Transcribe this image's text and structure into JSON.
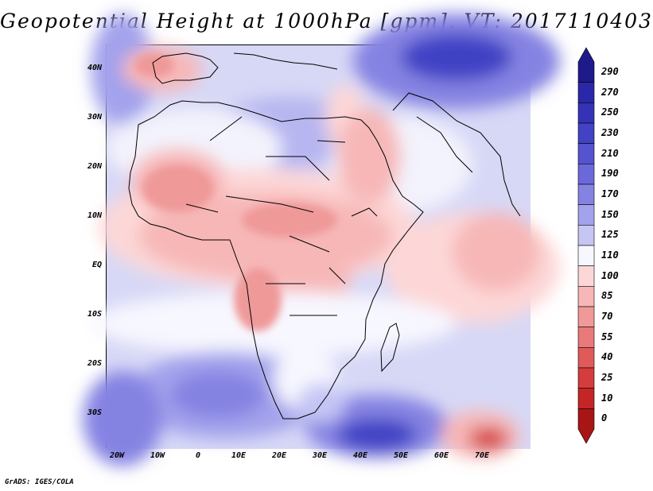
{
  "title": "Geopotential Height at 1000hPa [gpm], VT: 2017110403",
  "credit": "GrADS: IGES/COLA",
  "y_ticks": [
    "40N",
    "30N",
    "20N",
    "10N",
    "EQ",
    "10S",
    "20S",
    "30S"
  ],
  "x_ticks": [
    "20W",
    "10W",
    "0",
    "10E",
    "20E",
    "30E",
    "40E",
    "50E",
    "60E",
    "70E"
  ],
  "colorbar": {
    "labels": [
      "290",
      "270",
      "250",
      "230",
      "210",
      "190",
      "170",
      "150",
      "125",
      "110",
      "100",
      "85",
      "70",
      "55",
      "40",
      "25",
      "10",
      "0"
    ],
    "colors": [
      "#1e1a8a",
      "#2a28a8",
      "#3433b8",
      "#4142c4",
      "#5553cf",
      "#6b69d9",
      "#8583e2",
      "#a3a2ec",
      "#c6c6f5",
      "#f7f7ff",
      "#fdd7d7",
      "#f7b7b7",
      "#ef9999",
      "#e87a7a",
      "#e05a5a",
      "#d43d3d",
      "#c42525",
      "#a81515"
    ]
  }
}
